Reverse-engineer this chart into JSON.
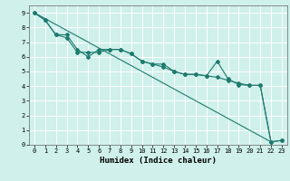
{
  "xlabel": "Humidex (Indice chaleur)",
  "bg_color": "#cff0eb",
  "line_color": "#1e7a6e",
  "grid_color": "#ffffff",
  "xlim": [
    -0.5,
    23.5
  ],
  "ylim": [
    0,
    9.5
  ],
  "xticks": [
    0,
    1,
    2,
    3,
    4,
    5,
    6,
    7,
    8,
    9,
    10,
    11,
    12,
    13,
    14,
    15,
    16,
    17,
    18,
    19,
    20,
    21,
    22,
    23
  ],
  "yticks": [
    0,
    1,
    2,
    3,
    4,
    5,
    6,
    7,
    8,
    9
  ],
  "line1_x": [
    0,
    1,
    2,
    3,
    4,
    5,
    6,
    7,
    8,
    9,
    10,
    11,
    12,
    13,
    14,
    15,
    16,
    17,
    18,
    19,
    20,
    21,
    22,
    23
  ],
  "line1_y": [
    9.0,
    8.5,
    7.5,
    7.5,
    6.5,
    6.0,
    6.5,
    6.5,
    6.5,
    6.2,
    5.7,
    5.5,
    5.5,
    5.0,
    4.8,
    4.8,
    4.7,
    5.7,
    4.5,
    4.1,
    4.05,
    4.05,
    0.2,
    0.3
  ],
  "line2_x": [
    0,
    1,
    2,
    3,
    4,
    5,
    6,
    7,
    8,
    9,
    10,
    11,
    12,
    13,
    14,
    15,
    16,
    17,
    18,
    19,
    20,
    21,
    22,
    23
  ],
  "line2_y": [
    9.0,
    8.5,
    7.5,
    7.3,
    6.3,
    6.3,
    6.3,
    6.5,
    6.5,
    6.2,
    5.7,
    5.5,
    5.3,
    5.0,
    4.8,
    4.8,
    4.7,
    4.6,
    4.4,
    4.2,
    4.05,
    4.05,
    0.2,
    0.3
  ],
  "line3_x": [
    0,
    22
  ],
  "line3_y": [
    9.0,
    0.2
  ]
}
